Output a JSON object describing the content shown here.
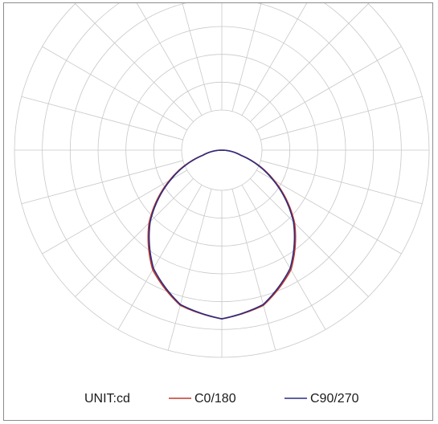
{
  "chart_data": {
    "type": "polar",
    "title": "",
    "unit_label": "UNIT:cd",
    "grid": true,
    "angle_step_deg": 15,
    "ring_count": 6,
    "legend_position": "bottom",
    "series": [
      {
        "name": "C0/180",
        "color": "#c0392b",
        "angles_deg": [
          0,
          15,
          30,
          45,
          60,
          75,
          90
        ],
        "values": [
          210,
          200,
          172,
          128,
          75,
          25,
          0
        ]
      },
      {
        "name": "C90/270",
        "color": "#2c2c82",
        "angles_deg": [
          0,
          15,
          30,
          45,
          60,
          75,
          90
        ],
        "values": [
          210,
          199,
          170,
          126,
          73,
          24,
          0
        ]
      }
    ]
  },
  "colors": {
    "grid": "#c8c8c8",
    "frame": "#8c8c8c"
  }
}
